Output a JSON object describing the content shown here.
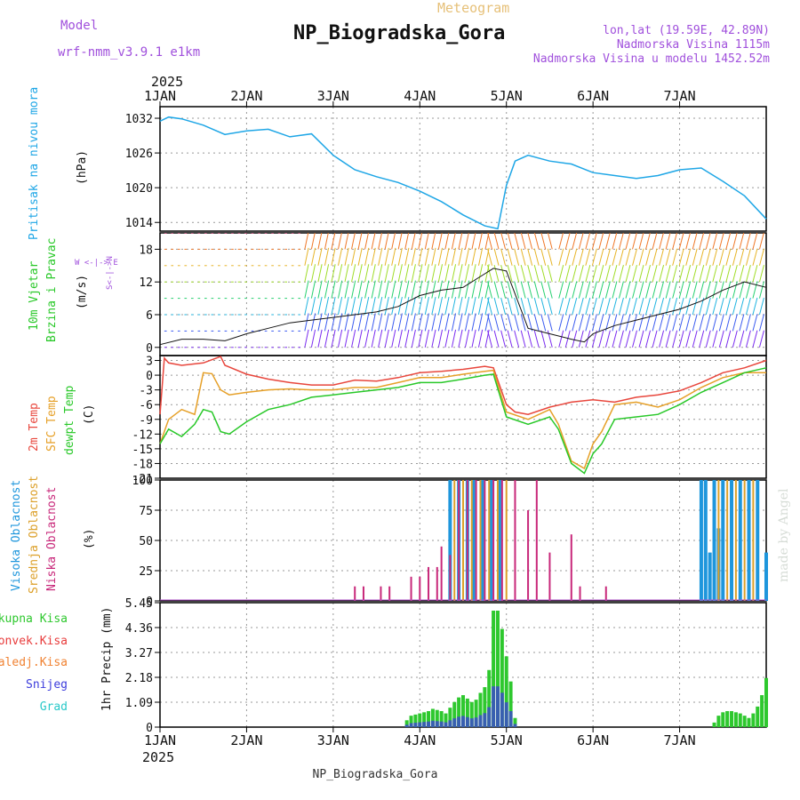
{
  "header": {
    "model_label": "Model",
    "model_name": "wrf-nmm_v3.9.1 e1km",
    "meteogram": "Meteogram",
    "station": "NP_Biogradska_Gora",
    "coords": "lon,lat (19.59E, 42.89N)",
    "elevation": "Nadmorska Visina 1115m",
    "model_elevation": "Nadmorska Visina u modelu 1452.52m",
    "footer_station": "NP_Biogradska_Gora",
    "credit": "made by Angel"
  },
  "colors": {
    "pressure": "#1ea6e6",
    "temp2m": "#e8463c",
    "sfc_temp": "#e6a028",
    "dewpoint": "#28c828",
    "cloud_high": "#1e96dc",
    "cloud_mid": "#dca02a",
    "cloud_low": "#c8287a",
    "precip_total": "#2ec82e",
    "precip_conv": "#e83c3c",
    "precip_frozen": "#f08232",
    "precip_snow": "#3c3cdc",
    "precip_hail": "#28c8c8"
  },
  "chart_data": [
    {
      "type": "line",
      "name": "pressure",
      "ylabel_line1": "Pritisak na nivou mora",
      "unit": "(hPa)",
      "ylim": [
        1012.5,
        1034
      ],
      "yticks": [
        1014,
        1020,
        1026,
        1032
      ],
      "x": [
        0,
        0.1,
        0.25,
        0.5,
        0.75,
        1.0,
        1.25,
        1.5,
        1.75,
        2.0,
        2.25,
        2.5,
        2.75,
        3.0,
        3.25,
        3.5,
        3.75,
        3.9,
        4.0,
        4.1,
        4.25,
        4.5,
        4.75,
        5.0,
        5.25,
        5.5,
        5.75,
        6.0,
        6.25,
        6.5,
        6.75,
        7.0
      ],
      "values": [
        1031.5,
        1032.2,
        1031.9,
        1030.8,
        1029.2,
        1029.8,
        1030.1,
        1028.8,
        1029.3,
        1025.6,
        1023.1,
        1021.9,
        1020.9,
        1019.4,
        1017.6,
        1015.3,
        1013.4,
        1012.9,
        1020.4,
        1024.6,
        1025.6,
        1024.6,
        1024.1,
        1022.6,
        1022.1,
        1021.6,
        1022.1,
        1023.1,
        1023.4,
        1021.1,
        1018.6,
        1014.6
      ]
    },
    {
      "type": "line",
      "name": "wind",
      "ylabel_line1": "10m Vjetar",
      "ylabel_line2": "Brzina i Pravac",
      "unit": "(m/s)",
      "legend_compass": "W <-|-> E",
      "legend_compass_ns": "S<-|->N",
      "ylim": [
        -1.5,
        21
      ],
      "yticks": [
        0,
        6,
        12,
        18
      ],
      "x": [
        0,
        0.25,
        0.5,
        0.75,
        1.0,
        1.25,
        1.5,
        1.75,
        2.0,
        2.25,
        2.5,
        2.75,
        3.0,
        3.25,
        3.5,
        3.75,
        3.85,
        4.0,
        4.25,
        4.5,
        4.75,
        4.9,
        5.0,
        5.25,
        5.5,
        5.75,
        6.0,
        6.25,
        6.5,
        6.75,
        7.0
      ],
      "values": [
        0.5,
        1.5,
        1.5,
        1.2,
        2.5,
        3.5,
        4.5,
        5.0,
        5.5,
        6.0,
        6.5,
        7.5,
        9.5,
        10.5,
        11.0,
        13.5,
        14.5,
        14.0,
        3.5,
        2.5,
        1.5,
        1.0,
        2.5,
        4.0,
        5.0,
        6.0,
        7.0,
        8.5,
        10.5,
        12.0,
        11.0
      ]
    },
    {
      "type": "line",
      "name": "temperature",
      "ylabel_line1": "2m Temp",
      "ylabel_line2": "SFC Temp",
      "ylabel_line3": "dewpt Temp",
      "unit": "(C)",
      "ylim": [
        -21,
        4
      ],
      "yticks": [
        3,
        0,
        -3,
        -6,
        -9,
        -12,
        -15,
        -18,
        -21
      ],
      "series": [
        {
          "name": "2m Temp",
          "x": [
            0,
            0.05,
            0.1,
            0.25,
            0.5,
            0.7,
            0.75,
            1.0,
            1.25,
            1.5,
            1.75,
            2.0,
            2.25,
            2.5,
            2.75,
            3.0,
            3.25,
            3.5,
            3.75,
            3.85,
            4.0,
            4.1,
            4.25,
            4.5,
            4.75,
            5.0,
            5.25,
            5.5,
            5.75,
            6.0,
            6.25,
            6.5,
            6.75,
            7.0
          ],
          "values": [
            -8,
            3.5,
            2.5,
            2.0,
            2.5,
            3.8,
            2.0,
            0.2,
            -0.8,
            -1.5,
            -2.0,
            -2.0,
            -1.0,
            -1.2,
            -0.5,
            0.5,
            0.8,
            1.2,
            1.8,
            1.5,
            -6,
            -7.5,
            -8.0,
            -6.5,
            -5.5,
            -5.0,
            -5.5,
            -4.5,
            -4.0,
            -3.2,
            -1.5,
            0.5,
            1.5,
            3.0
          ]
        },
        {
          "name": "SFC Temp",
          "x": [
            0,
            0.1,
            0.25,
            0.4,
            0.5,
            0.6,
            0.7,
            0.8,
            1.0,
            1.25,
            1.5,
            1.75,
            2.0,
            2.25,
            2.5,
            2.75,
            3.0,
            3.25,
            3.5,
            3.75,
            3.85,
            4.0,
            4.25,
            4.5,
            4.6,
            4.75,
            4.9,
            5.0,
            5.1,
            5.25,
            5.5,
            5.75,
            6.0,
            6.25,
            6.5,
            6.75,
            7.0
          ],
          "values": [
            -14,
            -9,
            -7,
            -8,
            0.5,
            0.3,
            -3,
            -4.0,
            -3.5,
            -3.0,
            -2.8,
            -3.0,
            -3.0,
            -2.5,
            -2.5,
            -1.5,
            -0.5,
            -0.5,
            0.2,
            0.8,
            1.0,
            -7.5,
            -9.0,
            -7.0,
            -10.0,
            -17.5,
            -19.0,
            -14.0,
            -11.5,
            -6.0,
            -5.5,
            -6.5,
            -5.0,
            -2.5,
            -0.5,
            0.5,
            0.5
          ]
        },
        {
          "name": "dewpt Temp",
          "x": [
            0,
            0.1,
            0.25,
            0.4,
            0.5,
            0.6,
            0.7,
            0.8,
            1.0,
            1.25,
            1.5,
            1.75,
            2.0,
            2.25,
            2.5,
            2.75,
            3.0,
            3.25,
            3.5,
            3.75,
            3.85,
            4.0,
            4.25,
            4.5,
            4.6,
            4.75,
            4.9,
            5.0,
            5.1,
            5.25,
            5.5,
            5.75,
            6.0,
            6.25,
            6.5,
            6.75,
            7.0
          ],
          "values": [
            -14,
            -11,
            -12.5,
            -10,
            -7.0,
            -7.5,
            -11.5,
            -12,
            -9.5,
            -7.0,
            -6.0,
            -4.5,
            -4.0,
            -3.5,
            -3.0,
            -2.5,
            -1.5,
            -1.5,
            -0.8,
            0.0,
            0.2,
            -8.5,
            -10.0,
            -8.5,
            -11.0,
            -18.0,
            -20.0,
            -16.0,
            -14.0,
            -9.0,
            -8.5,
            -8.0,
            -6.0,
            -3.5,
            -1.5,
            0.5,
            1.5
          ]
        }
      ]
    },
    {
      "type": "bar",
      "name": "clouds",
      "ylabel_line1": "Visoka Oblacnost",
      "ylabel_line2": "Srednja Oblacnost",
      "ylabel_line3": "Niska Oblacnost",
      "unit": "(%)",
      "ylim": [
        0,
        100
      ],
      "yticks": [
        0,
        25,
        50,
        75,
        100
      ],
      "low_x": [
        2.25,
        2.35,
        2.55,
        2.65,
        2.9,
        3.0,
        3.1,
        3.2,
        3.25,
        3.35,
        3.45,
        3.55,
        3.65,
        3.75,
        3.85,
        3.95,
        4.1,
        4.25,
        4.35,
        4.5,
        4.75,
        4.85,
        5.15
      ],
      "low_values": [
        12,
        12,
        12,
        12,
        20,
        20,
        28,
        28,
        45,
        38,
        100,
        100,
        100,
        100,
        100,
        100,
        100,
        75,
        100,
        40,
        55,
        12,
        12
      ],
      "mid_x": [
        3.4,
        3.5,
        3.6,
        3.7,
        3.8,
        3.9,
        4.0,
        6.45,
        6.55,
        6.65,
        6.75,
        6.85
      ],
      "mid_values": [
        100,
        100,
        100,
        100,
        100,
        100,
        100,
        100,
        100,
        100,
        100,
        100
      ],
      "high_x": [
        3.35,
        3.45,
        3.55,
        3.62,
        3.72,
        3.82,
        3.92,
        6.25,
        6.3,
        6.35,
        6.4,
        6.45,
        6.5,
        6.6,
        6.7,
        6.8,
        6.9,
        7.0
      ],
      "high_values": [
        100,
        100,
        100,
        100,
        100,
        100,
        100,
        100,
        100,
        40,
        100,
        60,
        100,
        100,
        100,
        100,
        100,
        40
      ]
    },
    {
      "type": "bar",
      "name": "precipitation",
      "legend": [
        "Ukupna Kisa",
        "Konvek.Kisa",
        "Zaledj.Kisa",
        "Snijeg",
        "Grad"
      ],
      "ylabel": "1hr Precip (mm)",
      "ylim": [
        0,
        5.45
      ],
      "yticks": [
        0,
        1.09,
        2.18,
        3.27,
        4.36,
        5.45
      ],
      "x": [
        2.85,
        2.9,
        2.95,
        3.0,
        3.05,
        3.1,
        3.15,
        3.2,
        3.25,
        3.3,
        3.35,
        3.4,
        3.45,
        3.5,
        3.55,
        3.6,
        3.65,
        3.7,
        3.75,
        3.8,
        3.85,
        3.9,
        3.95,
        4.0,
        4.05,
        4.1,
        6.4,
        6.45,
        6.5,
        6.55,
        6.6,
        6.65,
        6.7,
        6.75,
        6.8,
        6.85,
        6.9,
        6.95,
        7.0
      ],
      "values": [
        0.3,
        0.5,
        0.55,
        0.6,
        0.65,
        0.7,
        0.8,
        0.75,
        0.7,
        0.6,
        0.85,
        1.1,
        1.3,
        1.4,
        1.25,
        1.1,
        1.2,
        1.5,
        1.75,
        2.5,
        5.1,
        5.1,
        4.3,
        3.1,
        2.0,
        0.4,
        0.2,
        0.5,
        0.65,
        0.7,
        0.7,
        0.65,
        0.6,
        0.5,
        0.4,
        0.6,
        0.9,
        1.4,
        2.15
      ]
    }
  ],
  "x_axis": {
    "year": "2025",
    "ticks": [
      "1JAN",
      "2JAN",
      "3JAN",
      "4JAN",
      "5JAN",
      "6JAN",
      "7JAN"
    ]
  }
}
